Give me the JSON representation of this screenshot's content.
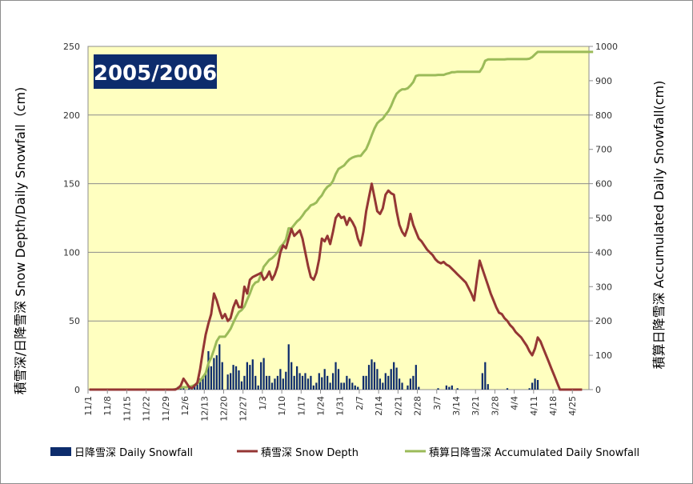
{
  "chart_data": {
    "type": "bar+line",
    "title": "2005/2006",
    "ylabel_left": "積雪深/日降雪深 Snow Depth/Daily Snowfall（cm)",
    "ylabel_right": "積算日降雪深 Accumulated Daily Snowfall(cm)",
    "ylim_left": [
      0,
      250
    ],
    "ylim_right": [
      0,
      1000
    ],
    "yticks_left": [
      "0",
      "50",
      "100",
      "150",
      "200",
      "250"
    ],
    "yticks_right": [
      "0",
      "100",
      "200",
      "300",
      "400",
      "500",
      "600",
      "700",
      "800",
      "900",
      "1000"
    ],
    "x_start": "11/1",
    "x_days": 181,
    "x_tick_labels": [
      "11/1",
      "11/8",
      "11/15",
      "11/22",
      "11/29",
      "12/6",
      "12/13",
      "12/20",
      "12/27",
      "1/3",
      "1/10",
      "1/17",
      "1/24",
      "1/31",
      "2/7",
      "2/14",
      "2/21",
      "2/28",
      "3/7",
      "3/14",
      "3/21",
      "3/28",
      "4/4",
      "4/11",
      "4/18",
      "4/25"
    ],
    "grid": true,
    "legend_position": "bottom",
    "colors": {
      "plot_background": "#ffffc0",
      "daily_snowfall": "#0d2c6c",
      "snow_depth": "#943634",
      "accumulated": "#9bbb59",
      "title_box": "#0d2c6c"
    },
    "series": [
      {
        "name": "日降雪深 Daily Snowfall",
        "type": "bar",
        "axis": "left",
        "values": [
          0,
          0,
          0,
          0,
          0,
          0,
          0,
          0,
          0,
          0,
          0,
          0,
          0,
          0,
          0,
          0,
          0,
          0,
          0,
          0,
          0,
          0,
          0,
          0,
          0,
          0,
          0,
          0,
          0,
          0,
          0,
          1,
          2,
          3,
          1,
          0,
          1,
          2,
          3,
          5,
          8,
          10,
          12,
          28,
          17,
          23,
          25,
          33,
          20,
          0,
          11,
          12,
          18,
          17,
          14,
          6,
          10,
          20,
          18,
          22,
          10,
          3,
          20,
          23,
          10,
          10,
          5,
          8,
          10,
          15,
          8,
          13,
          33,
          20,
          10,
          17,
          12,
          10,
          12,
          8,
          10,
          3,
          5,
          12,
          9,
          15,
          10,
          5,
          12,
          20,
          15,
          5,
          5,
          10,
          8,
          5,
          3,
          2,
          0,
          10,
          10,
          18,
          22,
          20,
          15,
          8,
          5,
          12,
          10,
          15,
          20,
          16,
          8,
          5,
          0,
          3,
          8,
          10,
          18,
          2,
          0,
          0,
          0,
          0,
          0,
          0,
          1,
          0,
          0,
          3,
          2,
          3,
          0,
          1,
          0,
          0,
          0,
          0,
          0,
          0,
          0,
          0,
          12,
          20,
          4,
          0,
          0,
          0,
          0,
          0,
          0,
          1,
          0,
          0,
          0,
          0,
          0,
          0,
          0,
          1,
          5,
          8,
          7,
          0,
          0,
          0,
          0,
          0,
          0,
          0,
          0,
          0,
          0,
          0,
          0,
          0,
          0,
          0,
          0,
          0,
          0,
          0,
          0
        ]
      },
      {
        "name": "積雪深 Snow Depth",
        "type": "line",
        "axis": "left",
        "values": [
          0,
          0,
          0,
          0,
          0,
          0,
          0,
          0,
          0,
          0,
          0,
          0,
          0,
          0,
          0,
          0,
          0,
          0,
          0,
          0,
          0,
          0,
          0,
          0,
          0,
          0,
          0,
          0,
          0,
          0,
          0,
          0,
          1,
          3,
          8,
          5,
          2,
          1,
          3,
          5,
          15,
          28,
          40,
          48,
          55,
          70,
          65,
          58,
          52,
          55,
          50,
          52,
          60,
          65,
          60,
          60,
          75,
          70,
          80,
          82,
          83,
          84,
          85,
          80,
          82,
          86,
          80,
          84,
          90,
          100,
          105,
          103,
          110,
          117,
          112,
          114,
          116,
          110,
          100,
          90,
          82,
          80,
          85,
          95,
          110,
          108,
          112,
          106,
          115,
          125,
          128,
          125,
          126,
          120,
          125,
          122,
          118,
          110,
          105,
          115,
          130,
          140,
          150,
          140,
          130,
          128,
          132,
          142,
          145,
          143,
          142,
          130,
          120,
          115,
          112,
          118,
          128,
          120,
          115,
          110,
          108,
          105,
          102,
          100,
          98,
          95,
          93,
          92,
          93,
          91,
          90,
          88,
          86,
          84,
          82,
          80,
          78,
          74,
          70,
          65,
          80,
          94,
          88,
          82,
          76,
          70,
          65,
          60,
          56,
          55,
          52,
          50,
          47,
          45,
          42,
          40,
          38,
          35,
          32,
          28,
          25,
          30,
          38,
          35,
          30,
          25,
          20,
          15,
          10,
          5,
          0,
          0,
          0,
          0,
          0,
          0,
          0,
          0,
          0
        ]
      },
      {
        "name": "積算日降雪深 Accumulated Daily Snowfall",
        "type": "line",
        "axis": "right",
        "values": [
          0,
          0,
          0,
          0,
          0,
          0,
          0,
          0,
          0,
          0,
          0,
          0,
          0,
          0,
          0,
          0,
          0,
          0,
          0,
          0,
          0,
          0,
          0,
          0,
          0,
          0,
          0,
          0,
          0,
          0,
          0,
          1,
          3,
          6,
          7,
          7,
          8,
          10,
          13,
          18,
          26,
          36,
          48,
          76,
          93,
          116,
          141,
          154,
          154,
          154,
          165,
          177,
          195,
          212,
          226,
          232,
          242,
          262,
          280,
          302,
          312,
          315,
          335,
          358,
          368,
          378,
          383,
          391,
          401,
          416,
          424,
          437,
          470,
          470,
          480,
          490,
          497,
          507,
          519,
          527,
          537,
          540,
          545,
          557,
          566,
          581,
          591,
          596,
          608,
          628,
          643,
          648,
          653,
          663,
          671,
          676,
          679,
          681,
          681,
          691,
          701,
          719,
          741,
          761,
          776,
          784,
          789,
          801,
          811,
          826,
          846,
          862,
          870,
          875,
          875,
          878,
          886,
          896,
          914,
          916,
          916,
          916,
          916,
          916,
          916,
          916,
          917,
          917,
          917,
          920,
          922,
          925,
          925,
          926,
          926,
          926,
          926,
          926,
          926,
          926,
          926,
          926,
          938,
          958,
          962,
          962,
          962,
          962,
          962,
          962,
          962,
          963,
          963,
          963,
          963,
          963,
          963,
          963,
          963,
          964,
          969,
          977,
          984,
          984,
          984,
          984,
          984,
          984,
          984,
          984,
          984,
          984,
          984,
          984,
          984,
          984,
          984,
          984,
          984,
          984,
          984,
          984,
          984
        ]
      }
    ]
  }
}
